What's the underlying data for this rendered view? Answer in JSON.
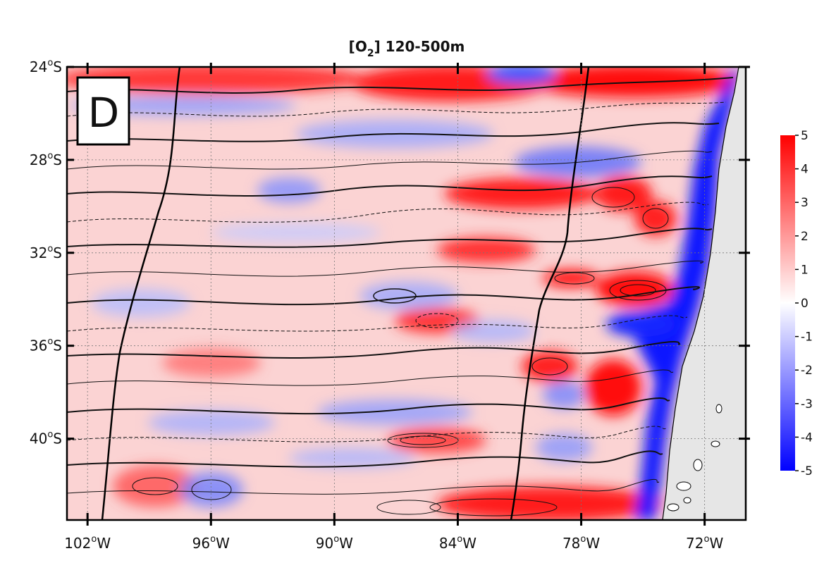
{
  "title": {
    "main": "[O",
    "sub": "2",
    "rest": "] 120-500m"
  },
  "panel_label": "D",
  "map": {
    "lon_range": [
      -103,
      -70
    ],
    "lat_range": [
      -43.5,
      -24
    ],
    "lat_ticks": [
      {
        "value": -24,
        "num": "24",
        "deg": "o",
        "hemi": "S"
      },
      {
        "value": -28,
        "num": "28",
        "deg": "o",
        "hemi": "S"
      },
      {
        "value": -32,
        "num": "32",
        "deg": "o",
        "hemi": "S"
      },
      {
        "value": -36,
        "num": "36",
        "deg": "o",
        "hemi": "S"
      },
      {
        "value": -40,
        "num": "40",
        "deg": "o",
        "hemi": "S"
      }
    ],
    "lon_ticks": [
      {
        "value": -102,
        "num": "102",
        "deg": "o",
        "hemi": "W"
      },
      {
        "value": -96,
        "num": "96",
        "deg": "o",
        "hemi": "W"
      },
      {
        "value": -90,
        "num": "90",
        "deg": "o",
        "hemi": "W"
      },
      {
        "value": -84,
        "num": "84",
        "deg": "o",
        "hemi": "W"
      },
      {
        "value": -78,
        "num": "78",
        "deg": "o",
        "hemi": "W"
      },
      {
        "value": -72,
        "num": "72",
        "deg": "o",
        "hemi": "W"
      }
    ],
    "gridlines": true,
    "land_color": "#e6e6e6"
  },
  "colorbar": {
    "min": -5,
    "max": 5,
    "ticks": [
      "5",
      "4",
      "3",
      "2",
      "1",
      "0",
      "-1",
      "-2",
      "-3",
      "-4",
      "-5"
    ],
    "colors": {
      "low": "#0000ff",
      "mid": "#ffffff",
      "high": "#ff0000"
    }
  }
}
